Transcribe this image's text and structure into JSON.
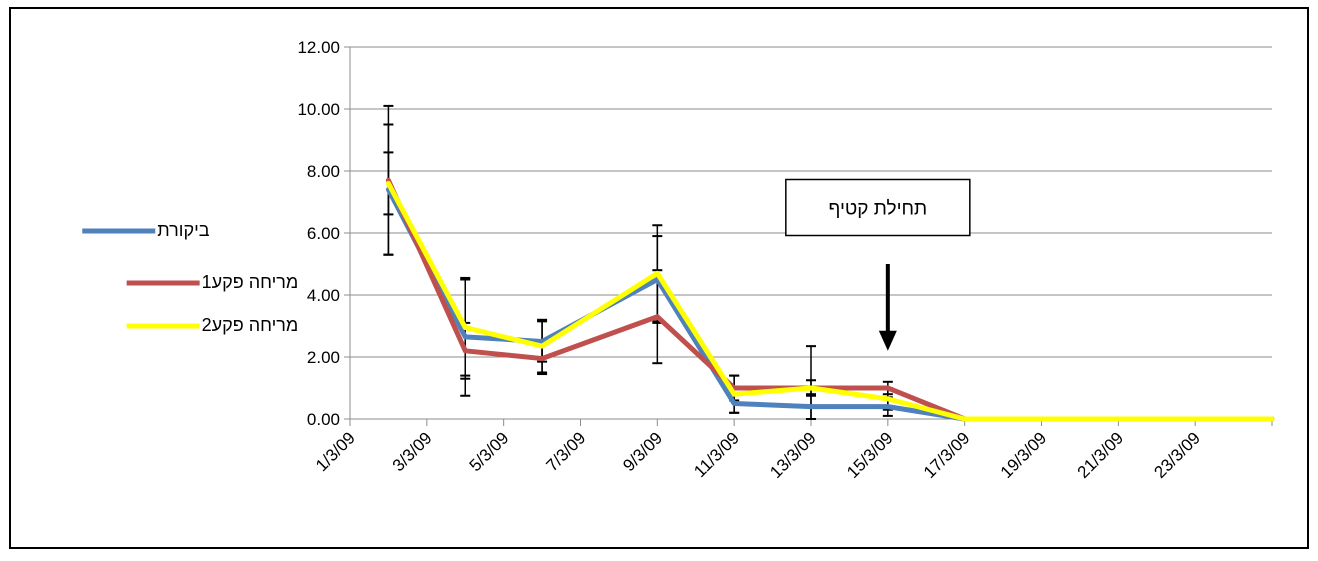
{
  "chart_data": {
    "type": "line",
    "title": "",
    "xlabel": "",
    "ylabel": "",
    "x_tick_labels": [
      "1/3/09",
      "3/3/09",
      "5/3/09",
      "7/3/09",
      "9/3/09",
      "11/3/09",
      "13/3/09",
      "15/3/09",
      "17/3/09",
      "19/3/09",
      "21/3/09",
      "23/3/09"
    ],
    "y_tick_labels": [
      "0.00",
      "2.00",
      "4.00",
      "6.00",
      "8.00",
      "10.00",
      "12.00"
    ],
    "xlim": [
      "1/3/09",
      "25/3/09"
    ],
    "ylim": [
      0,
      12
    ],
    "grid": "horizontal",
    "legend_position": "left",
    "x": [
      "2/3/09",
      "4/3/09",
      "6/3/09",
      "9/3/09",
      "11/3/09",
      "13/3/09",
      "15/3/09",
      "17/3/09",
      "19/3/09",
      "21/3/09",
      "23/3/09",
      "25/3/09"
    ],
    "series": [
      {
        "name": "ביקורת",
        "color": "#4f81bd",
        "values": [
          7.4,
          2.65,
          2.5,
          4.5,
          0.5,
          0.4,
          0.4,
          0,
          0,
          0,
          0,
          0
        ],
        "error": [
          2.1,
          1.9,
          0.65,
          1.4,
          0.3,
          0.4,
          0.3,
          null,
          null,
          null,
          null,
          null
        ]
      },
      {
        "name": "מריחה פקע1",
        "color": "#c0504d",
        "values": [
          7.7,
          2.2,
          1.95,
          3.3,
          1.0,
          1.0,
          1.0,
          0,
          0,
          0,
          0,
          0
        ],
        "error": [
          2.4,
          0.9,
          0.5,
          1.5,
          0.4,
          0.25,
          0.2,
          null,
          null,
          null,
          null,
          null
        ]
      },
      {
        "name": "מריחה פקע2",
        "color": "#ffff00",
        "values": [
          7.6,
          2.95,
          2.35,
          4.7,
          0.8,
          1.0,
          0.65,
          0,
          0,
          0,
          0,
          0
        ],
        "error": [
          1.0,
          1.55,
          0.85,
          1.55,
          0.6,
          1.35,
          0.35,
          null,
          null,
          null,
          null,
          null
        ]
      }
    ],
    "annotation": {
      "text": "תחילת קטיף",
      "x": "15/3/09",
      "y_text": 6.5,
      "arrow_from": 5.0,
      "arrow_to": 2.2
    }
  }
}
